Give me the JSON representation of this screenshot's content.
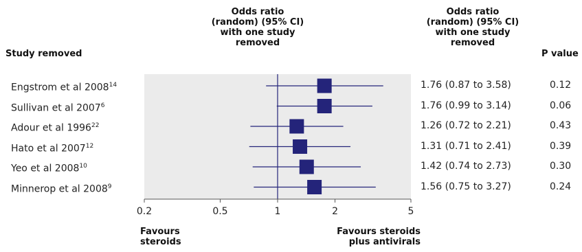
{
  "headers": {
    "study_removed": "Study removed",
    "forest_plot": [
      "Odds ratio",
      "(random) (95% CI)",
      "with one study",
      "removed"
    ],
    "or_ci": [
      "Odds ratio",
      "(random) (95% CI)",
      "with one study",
      "removed"
    ],
    "p_value": "P value"
  },
  "favours": {
    "left": [
      "Favours",
      "steroids"
    ],
    "right": [
      "Favours steroids",
      "plus antivirals"
    ]
  },
  "chart_data": {
    "type": "scatter",
    "title": "",
    "xlabel": "",
    "ylabel": "",
    "x_scale": "log",
    "xlim": [
      0.2,
      5
    ],
    "x_ticks": [
      0.2,
      0.5,
      1,
      2,
      5
    ],
    "x_tick_labels": [
      "0.2",
      "0.5",
      "1",
      "2",
      "5"
    ],
    "reference_line": 1,
    "colors": {
      "marker": "#24247a",
      "line": "#24247a",
      "panel": "#ebebeb",
      "axis": "#555555"
    },
    "studies": [
      {
        "name": "Engstrom et al 2008",
        "ref": "14",
        "or": 1.76,
        "lower": 0.87,
        "upper": 3.58,
        "ci_text": "1.76 (0.87 to 3.58)",
        "p": "0.12"
      },
      {
        "name": "Sullivan et al 2007",
        "ref": "6",
        "or": 1.76,
        "lower": 0.99,
        "upper": 3.14,
        "ci_text": "1.76 (0.99 to 3.14)",
        "p": "0.06"
      },
      {
        "name": "Adour et al 1996",
        "ref": "22",
        "or": 1.26,
        "lower": 0.72,
        "upper": 2.21,
        "ci_text": "1.26 (0.72 to 2.21)",
        "p": "0.43"
      },
      {
        "name": "Hato et al 2007",
        "ref": "12",
        "or": 1.31,
        "lower": 0.71,
        "upper": 2.41,
        "ci_text": "1.31 (0.71 to 2.41)",
        "p": "0.39"
      },
      {
        "name": "Yeo et al 2008",
        "ref": "10",
        "or": 1.42,
        "lower": 0.74,
        "upper": 2.73,
        "ci_text": "1.42 (0.74 to 2.73)",
        "p": "0.30"
      },
      {
        "name": "Minnerop et al 2008",
        "ref": "9",
        "or": 1.56,
        "lower": 0.75,
        "upper": 3.27,
        "ci_text": "1.56 (0.75 to 3.27)",
        "p": "0.24"
      }
    ]
  }
}
